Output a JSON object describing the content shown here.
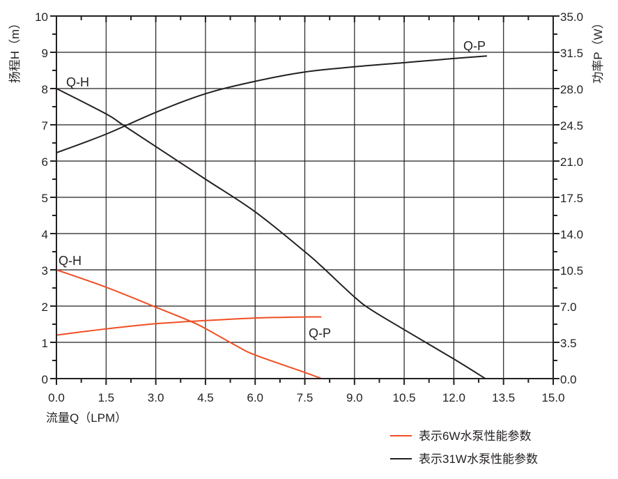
{
  "chart_data": {
    "type": "line",
    "title": "",
    "xlabel": "流量Q（LPM）",
    "ylabel_left": "扬程H（m）",
    "ylabel_right": "功率P（W）",
    "xlim": [
      0,
      15
    ],
    "ylim_left": [
      0,
      10
    ],
    "ylim_right": [
      0,
      35
    ],
    "x_ticks": [
      "0.0",
      "1.5",
      "3.0",
      "4.5",
      "6.0",
      "7.5",
      "9.0",
      "10.5",
      "12.0",
      "13.5",
      "15.0"
    ],
    "y_left_ticks": [
      "0",
      "1",
      "2",
      "3",
      "4",
      "5",
      "6",
      "7",
      "8",
      "9",
      "10"
    ],
    "y_right_ticks": [
      "0.0",
      "3.5",
      "7.0",
      "10.5",
      "14.0",
      "17.5",
      "21.0",
      "24.5",
      "28.0",
      "31.5",
      "35.0"
    ],
    "grid": true,
    "legend_placement": "bottom-right",
    "legend": [
      {
        "label": "表示6W水泵性能参数",
        "color": "#f04e23"
      },
      {
        "label": "表示31W水泵性能参数",
        "color": "#231f20"
      }
    ],
    "series": [
      {
        "pump": "6W",
        "curve": "Q-H",
        "axis": "left",
        "color": "#f04e23",
        "x": [
          0,
          1.5,
          3.0,
          4.0,
          4.5,
          5.5,
          6.0,
          7.5,
          8.0
        ],
        "y": [
          3.0,
          2.52,
          1.97,
          1.6,
          1.38,
          0.87,
          0.65,
          0.17,
          0.0
        ]
      },
      {
        "pump": "6W",
        "curve": "Q-P",
        "axis": "right",
        "color": "#f04e23",
        "x": [
          0,
          1.5,
          3.0,
          4.5,
          6.0,
          7.5,
          8.0
        ],
        "y": [
          4.2,
          4.8,
          5.3,
          5.6,
          5.85,
          5.95,
          5.95
        ]
      },
      {
        "pump": "31W",
        "curve": "Q-H",
        "axis": "left",
        "color": "#231f20",
        "x": [
          0,
          1.5,
          2.0,
          3.0,
          4.5,
          6.0,
          7.5,
          8.0,
          9.0,
          9.5,
          10.5,
          12.0,
          12.95
        ],
        "y": [
          8.0,
          7.3,
          7.0,
          6.4,
          5.5,
          4.6,
          3.5,
          3.1,
          2.25,
          1.9,
          1.35,
          0.54,
          0.0
        ]
      },
      {
        "pump": "31W",
        "curve": "Q-P",
        "axis": "right",
        "color": "#231f20",
        "x": [
          0,
          1.5,
          3.0,
          4.5,
          6.0,
          7.5,
          9.0,
          10.5,
          12.0,
          13.0
        ],
        "y": [
          21.8,
          23.6,
          25.7,
          27.5,
          28.7,
          29.6,
          30.1,
          30.5,
          30.9,
          31.15
        ]
      }
    ],
    "annotations": [
      "Q-H",
      "Q-P",
      "Q-H",
      "Q-P"
    ]
  }
}
